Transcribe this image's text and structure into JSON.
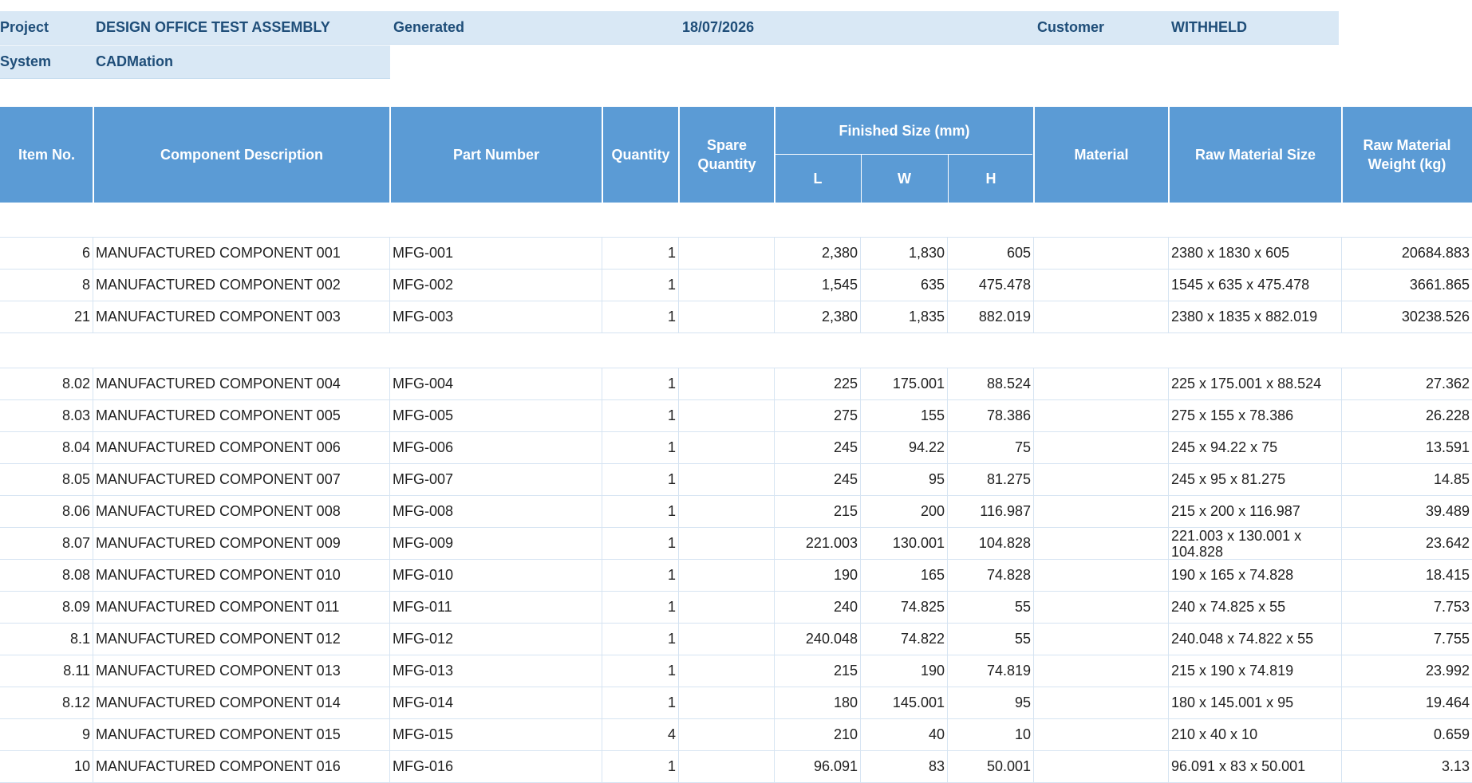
{
  "meta": {
    "project_label": "Project",
    "project_value": "DESIGN OFFICE TEST ASSEMBLY",
    "generated_label": "Generated",
    "generated_value": "18/07/2026",
    "customer_label": "Customer",
    "customer_value": "WITHHELD",
    "system_label": "System",
    "system_value": "CADMation"
  },
  "headers": {
    "item_no": "Item No.",
    "description": "Component Description",
    "part_number": "Part Number",
    "quantity": "Quantity",
    "spare_quantity": "Spare Quantity",
    "finished_size": "Finished Size (mm)",
    "l": "L",
    "w": "W",
    "h": "H",
    "material": "Material",
    "raw_material_size": "Raw Material Size",
    "raw_material_weight": "Raw Material Weight (kg)"
  },
  "groups": [
    {
      "rows": [
        {
          "item": "6",
          "desc": "MANUFACTURED COMPONENT 001",
          "part": "MFG-001",
          "qty": "1",
          "spare": "",
          "l": "2,380",
          "w": "1,830",
          "h": "605",
          "material": "",
          "raw": "2380 x 1830 x 605",
          "weight": "20684.883"
        },
        {
          "item": "8",
          "desc": "MANUFACTURED COMPONENT 002",
          "part": "MFG-002",
          "qty": "1",
          "spare": "",
          "l": "1,545",
          "w": "635",
          "h": "475.478",
          "material": "",
          "raw": "1545 x 635 x 475.478",
          "weight": "3661.865"
        },
        {
          "item": "21",
          "desc": "MANUFACTURED COMPONENT 003",
          "part": "MFG-003",
          "qty": "1",
          "spare": "",
          "l": "2,380",
          "w": "1,835",
          "h": "882.019",
          "material": "",
          "raw": "2380 x 1835 x 882.019",
          "weight": "30238.526"
        }
      ]
    },
    {
      "rows": [
        {
          "item": "8.02",
          "desc": "MANUFACTURED COMPONENT 004",
          "part": "MFG-004",
          "qty": "1",
          "spare": "",
          "l": "225",
          "w": "175.001",
          "h": "88.524",
          "material": "",
          "raw": "225 x 175.001 x 88.524",
          "weight": "27.362"
        },
        {
          "item": "8.03",
          "desc": "MANUFACTURED COMPONENT 005",
          "part": "MFG-005",
          "qty": "1",
          "spare": "",
          "l": "275",
          "w": "155",
          "h": "78.386",
          "material": "",
          "raw": "275 x 155 x 78.386",
          "weight": "26.228"
        },
        {
          "item": "8.04",
          "desc": "MANUFACTURED COMPONENT 006",
          "part": "MFG-006",
          "qty": "1",
          "spare": "",
          "l": "245",
          "w": "94.22",
          "h": "75",
          "material": "",
          "raw": "245 x 94.22 x 75",
          "weight": "13.591"
        },
        {
          "item": "8.05",
          "desc": "MANUFACTURED COMPONENT 007",
          "part": "MFG-007",
          "qty": "1",
          "spare": "",
          "l": "245",
          "w": "95",
          "h": "81.275",
          "material": "",
          "raw": "245 x 95 x 81.275",
          "weight": "14.85"
        },
        {
          "item": "8.06",
          "desc": "MANUFACTURED COMPONENT 008",
          "part": "MFG-008",
          "qty": "1",
          "spare": "",
          "l": "215",
          "w": "200",
          "h": "116.987",
          "material": "",
          "raw": "215 x 200 x 116.987",
          "weight": "39.489"
        },
        {
          "item": "8.07",
          "desc": "MANUFACTURED COMPONENT 009",
          "part": "MFG-009",
          "qty": "1",
          "spare": "",
          "l": "221.003",
          "w": "130.001",
          "h": "104.828",
          "material": "",
          "raw": "221.003 x 130.001 x 104.828",
          "weight": "23.642",
          "wrap": true
        },
        {
          "item": "8.08",
          "desc": "MANUFACTURED COMPONENT 010",
          "part": "MFG-010",
          "qty": "1",
          "spare": "",
          "l": "190",
          "w": "165",
          "h": "74.828",
          "material": "",
          "raw": "190 x 165 x 74.828",
          "weight": "18.415"
        },
        {
          "item": "8.09",
          "desc": "MANUFACTURED COMPONENT 011",
          "part": "MFG-011",
          "qty": "1",
          "spare": "",
          "l": "240",
          "w": "74.825",
          "h": "55",
          "material": "",
          "raw": "240 x 74.825 x 55",
          "weight": "7.753"
        },
        {
          "item": "8.1",
          "desc": "MANUFACTURED COMPONENT 012",
          "part": "MFG-012",
          "qty": "1",
          "spare": "",
          "l": "240.048",
          "w": "74.822",
          "h": "55",
          "material": "",
          "raw": "240.048 x 74.822 x 55",
          "weight": "7.755"
        },
        {
          "item": "8.11",
          "desc": "MANUFACTURED COMPONENT 013",
          "part": "MFG-013",
          "qty": "1",
          "spare": "",
          "l": "215",
          "w": "190",
          "h": "74.819",
          "material": "",
          "raw": "215 x 190 x 74.819",
          "weight": "23.992"
        },
        {
          "item": "8.12",
          "desc": "MANUFACTURED COMPONENT 014",
          "part": "MFG-014",
          "qty": "1",
          "spare": "",
          "l": "180",
          "w": "145.001",
          "h": "95",
          "material": "",
          "raw": "180 x 145.001 x 95",
          "weight": "19.464"
        },
        {
          "item": "9",
          "desc": "MANUFACTURED COMPONENT 015",
          "part": "MFG-015",
          "qty": "4",
          "spare": "",
          "l": "210",
          "w": "40",
          "h": "10",
          "material": "",
          "raw": "210 x 40 x 10",
          "weight": "0.659"
        },
        {
          "item": "10",
          "desc": "MANUFACTURED COMPONENT 016",
          "part": "MFG-016",
          "qty": "1",
          "spare": "",
          "l": "96.091",
          "w": "83",
          "h": "50.001",
          "material": "",
          "raw": "96.091 x 83 x 50.001",
          "weight": "3.13"
        }
      ]
    }
  ]
}
